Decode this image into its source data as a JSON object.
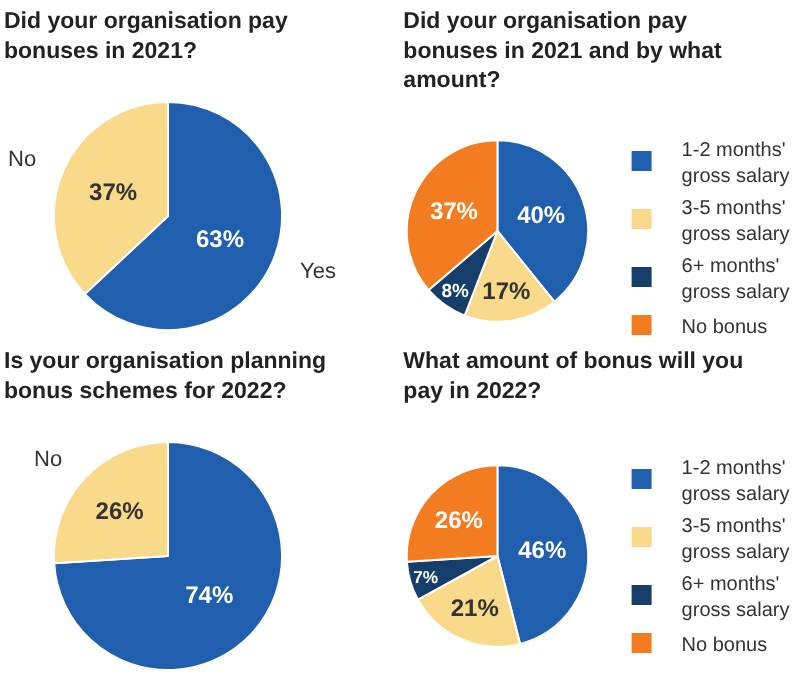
{
  "chart_data": [
    {
      "type": "pie",
      "title": "Did your organisation pay bonuses in 2021?",
      "categories": [
        "Yes",
        "No"
      ],
      "values": [
        63,
        37
      ],
      "colors": [
        "#1f5fae",
        "#f9d98a"
      ],
      "value_labels": [
        "63%",
        "37%"
      ]
    },
    {
      "type": "pie",
      "title": "Did your organisation pay bonuses in 2021 and by what amount?",
      "categories": [
        "1-2 months' gross salary",
        "3-5 months' gross salary",
        "6+ months' gross salary",
        "No bonus"
      ],
      "values": [
        40,
        17,
        8,
        37
      ],
      "colors": [
        "#1f5fae",
        "#f9d98a",
        "#163e6a",
        "#f47c20"
      ],
      "value_labels": [
        "40%",
        "17%",
        "8%",
        "37%"
      ],
      "legend": "right"
    },
    {
      "type": "pie",
      "title": "Is your organisation planning bonus schemes for 2022?",
      "categories": [
        null,
        "No"
      ],
      "values": [
        74,
        26
      ],
      "colors": [
        "#1f5fae",
        "#f9d98a"
      ],
      "value_labels": [
        "74%",
        "26%"
      ]
    },
    {
      "type": "pie",
      "title": "What amount of bonus will you pay in 2022?",
      "categories": [
        "1-2 months' gross salary",
        "3-5 months' gross salary",
        "6+ months' gross salary",
        "No bonus"
      ],
      "values": [
        46,
        21,
        7,
        26
      ],
      "colors": [
        "#1f5fae",
        "#f9d98a",
        "#163e6a",
        "#f47c20"
      ],
      "value_labels": [
        "46%",
        "21%",
        "7%",
        "26%"
      ],
      "legend": "right"
    }
  ]
}
